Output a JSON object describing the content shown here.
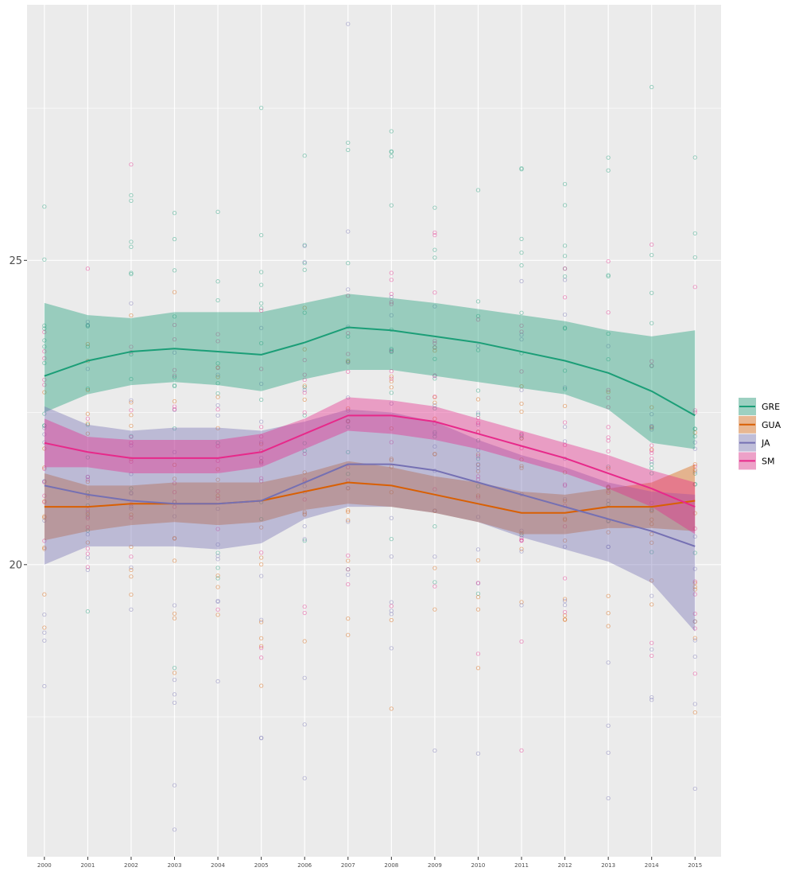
{
  "chart_data": {
    "type": "line",
    "title": "",
    "xlabel": "",
    "ylabel": "",
    "x": [
      2000,
      2001,
      2002,
      2003,
      2004,
      2005,
      2006,
      2007,
      2008,
      2009,
      2010,
      2011,
      2012,
      2013,
      2014,
      2015
    ],
    "x_tick_labels": [
      "2000",
      "2001",
      "2002",
      "2003",
      "2004",
      "2005",
      "2006",
      "2007",
      "2008",
      "2009",
      "2010",
      "2011",
      "2012",
      "2013",
      "2014",
      "2015"
    ],
    "y_ticks": [
      20,
      25
    ],
    "y_tick_labels": [
      "20",
      "25"
    ],
    "xlim": [
      1999.6,
      2015.6
    ],
    "ylim": [
      15.2,
      29.2
    ],
    "grid": true,
    "background_color": "#EBEBEB",
    "grid_color": "#FFFFFF",
    "legend_position": "right",
    "series": [
      {
        "name": "GRE",
        "color": "#1B9E77",
        "values": [
          23.1,
          23.35,
          23.5,
          23.55,
          23.5,
          23.45,
          23.65,
          23.9,
          23.85,
          23.75,
          23.65,
          23.5,
          23.35,
          23.15,
          22.85,
          22.45
        ],
        "ci_upper": [
          24.3,
          24.1,
          24.05,
          24.15,
          24.15,
          24.15,
          24.3,
          24.45,
          24.38,
          24.3,
          24.2,
          24.1,
          24.0,
          23.85,
          23.75,
          23.85
        ],
        "ci_lower": [
          22.5,
          22.8,
          22.95,
          23.0,
          22.95,
          22.85,
          23.05,
          23.2,
          23.2,
          23.1,
          23.0,
          22.9,
          22.8,
          22.55,
          22.0,
          21.9
        ]
      },
      {
        "name": "GUA",
        "color": "#D95F02",
        "values": [
          20.95,
          20.95,
          21.0,
          21.0,
          21.0,
          21.05,
          21.2,
          21.35,
          21.3,
          21.15,
          21.0,
          20.85,
          20.85,
          20.95,
          20.95,
          21.05
        ],
        "ci_upper": [
          21.5,
          21.3,
          21.3,
          21.35,
          21.35,
          21.35,
          21.5,
          21.7,
          21.6,
          21.45,
          21.35,
          21.2,
          21.15,
          21.25,
          21.35,
          21.65
        ],
        "ci_lower": [
          20.4,
          20.55,
          20.65,
          20.7,
          20.65,
          20.7,
          20.9,
          21.0,
          20.95,
          20.85,
          20.7,
          20.5,
          20.5,
          20.6,
          20.6,
          20.55
        ]
      },
      {
        "name": "JA",
        "color": "#7570B3",
        "values": [
          21.3,
          21.15,
          21.05,
          21.0,
          21.0,
          21.05,
          21.35,
          21.65,
          21.65,
          21.55,
          21.35,
          21.15,
          20.95,
          20.75,
          20.55,
          20.3
        ],
        "ci_upper": [
          22.6,
          22.3,
          22.2,
          22.25,
          22.25,
          22.2,
          22.35,
          22.55,
          22.5,
          22.35,
          22.05,
          21.8,
          21.6,
          21.35,
          21.2,
          21.15
        ],
        "ci_lower": [
          20.0,
          20.3,
          20.3,
          20.3,
          20.25,
          20.35,
          20.75,
          20.95,
          20.95,
          20.85,
          20.7,
          20.45,
          20.25,
          20.05,
          19.7,
          18.9
        ]
      },
      {
        "name": "SM",
        "color": "#E7298A",
        "values": [
          22.0,
          21.85,
          21.75,
          21.75,
          21.75,
          21.85,
          22.15,
          22.45,
          22.45,
          22.35,
          22.15,
          21.95,
          21.75,
          21.5,
          21.25,
          20.95
        ],
        "ci_upper": [
          22.4,
          22.1,
          22.05,
          22.05,
          22.05,
          22.15,
          22.4,
          22.75,
          22.7,
          22.6,
          22.4,
          22.2,
          22.0,
          21.8,
          21.55,
          21.35
        ],
        "ci_lower": [
          21.6,
          21.6,
          21.5,
          21.5,
          21.5,
          21.6,
          21.9,
          22.2,
          22.15,
          22.05,
          21.9,
          21.7,
          21.5,
          21.25,
          20.95,
          20.5
        ]
      }
    ],
    "points": {
      "description_free": true,
      "opacity": 0.3,
      "counts_per_year_per_group": 10
    }
  },
  "legend": {
    "items": [
      {
        "label": "GRE",
        "color": "#1B9E77"
      },
      {
        "label": "GUA",
        "color": "#D95F02"
      },
      {
        "label": "JA",
        "color": "#7570B3"
      },
      {
        "label": "SM",
        "color": "#E7298A"
      }
    ]
  }
}
